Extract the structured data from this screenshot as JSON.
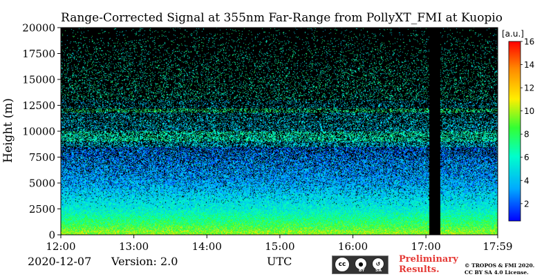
{
  "chart_data": {
    "type": "heatmap",
    "title": "Range-Corrected Signal at 355nm Far-Range from PollyXT_FMI at Kuopio",
    "ylabel": "Height (m)",
    "xlabel": "UTC",
    "x_ticks": [
      "12:00",
      "13:00",
      "14:00",
      "15:00",
      "16:00",
      "17:00",
      "17:59"
    ],
    "x_range_hours": [
      12.0,
      17.983
    ],
    "y_ticks": [
      0,
      2500,
      5000,
      7500,
      10000,
      12500,
      15000,
      17500,
      20000
    ],
    "ylim": [
      0,
      20000
    ],
    "colorbar": {
      "unit": "[a.u.]",
      "range": [
        0.5,
        16
      ],
      "ticks": [
        2,
        4,
        6,
        8,
        10,
        12,
        14,
        16
      ],
      "colors": [
        "#0000ff",
        "#00aaff",
        "#00ffcc",
        "#33ff33",
        "#ffee00",
        "#ff8800",
        "#ff0000"
      ]
    },
    "no_data_interval_hours": [
      17.05,
      17.2
    ],
    "signal_layers": [
      {
        "height_m": [
          0,
          400
        ],
        "level": "high"
      },
      {
        "height_m": [
          9000,
          10000
        ],
        "level": "elevated"
      },
      {
        "height_m": [
          11800,
          12200
        ],
        "level": "elevated"
      }
    ]
  },
  "footer": {
    "date": "2020-12-07",
    "version": "Version: 2.0",
    "time_unit": "UTC",
    "preliminary_line1": "Preliminary",
    "preliminary_line2": "Results.",
    "copyright_line1": "© TROPOS & FMI 2020.",
    "copyright_line2": "CC BY SA 4.0 License.",
    "cc_main": "cc",
    "cc_by": "BY",
    "cc_sa": "SA"
  }
}
